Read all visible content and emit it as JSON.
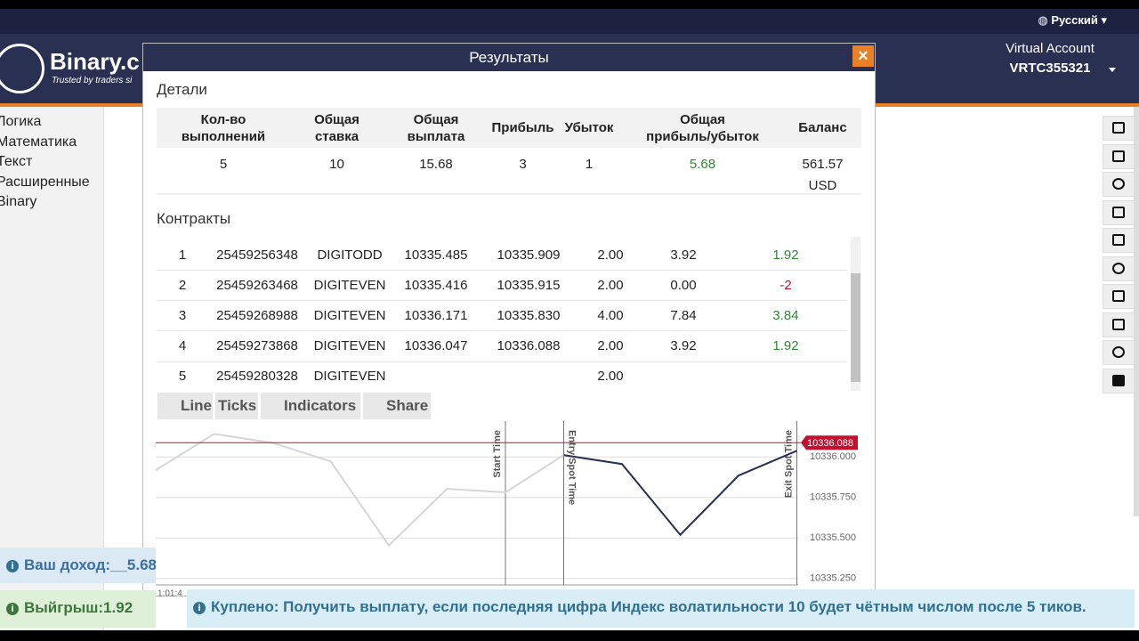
{
  "topbar": {
    "language": "Русский"
  },
  "header": {
    "logo": "Binary.c",
    "tagline": "Trusted by traders si",
    "account_label": "Virtual Account",
    "account_id": "VRTC355321"
  },
  "sidebar": {
    "items": [
      "Логика",
      "Математика",
      "Текст",
      "Расширенные",
      "Binary"
    ]
  },
  "modal": {
    "title": "Результаты",
    "details_heading": "Детали",
    "summary": {
      "headers": [
        "Кол-во\nвыполнений",
        "Общая\nставка",
        "Общая\nвыплата",
        "Прибыль",
        "Убыток",
        "Общая\nприбыль/убыток",
        "Баланс"
      ],
      "values": [
        "5",
        "10",
        "15.68",
        "3",
        "1",
        "5.68",
        "561.57\nUSD"
      ]
    },
    "contracts_heading": "Контракты",
    "contracts": [
      [
        "1",
        "25459256348",
        "DIGITODD",
        "10335.485",
        "10335.909",
        "2.00",
        "3.92",
        "1.92"
      ],
      [
        "2",
        "25459263468",
        "DIGITEVEN",
        "10335.416",
        "10335.915",
        "2.00",
        "0.00",
        "-2"
      ],
      [
        "3",
        "25459268988",
        "DIGITEVEN",
        "10336.171",
        "10335.830",
        "4.00",
        "7.84",
        "3.84"
      ],
      [
        "4",
        "25459273868",
        "DIGITEVEN",
        "10336.047",
        "10336.088",
        "2.00",
        "3.92",
        "1.92"
      ],
      [
        "5",
        "25459280328",
        "DIGITEVEN",
        null,
        null,
        "2.00",
        null,
        null
      ]
    ],
    "chart_toolbar": [
      "Line",
      "Ticks",
      "Indicators",
      "Share"
    ],
    "chart": {
      "type": "line",
      "x": [
        0,
        1,
        2,
        3,
        4,
        5,
        6,
        7,
        8,
        9,
        10,
        11
      ],
      "xlim": [
        0,
        11
      ],
      "ylim": [
        10335.21,
        10336.21
      ],
      "yticks": [
        {
          "value": 10336,
          "label": "10336.000"
        },
        {
          "value": 10335.75,
          "label": "10335.750"
        },
        {
          "value": 10335.5,
          "label": "10335.500"
        },
        {
          "value": 10335.25,
          "label": "10335.250"
        }
      ],
      "series": [
        {
          "color": "#d6d6d6",
          "values": [
            10335.918,
            10336.142,
            10336.087,
            10335.973,
            10335.454,
            10335.803,
            10335.781,
            10336.011,
            null,
            null,
            null,
            null
          ]
        },
        {
          "color": "#2a3052",
          "values": [
            null,
            null,
            null,
            null,
            null,
            null,
            null,
            10336.011,
            10335.956,
            10335.519,
            10335.885,
            10336.038
          ]
        }
      ],
      "current_price": 10336.088,
      "current_color": "#c4102f",
      "markers": [
        {
          "label": "Start Time",
          "x": 6
        },
        {
          "label": "Entry Spot Time",
          "x": 7
        },
        {
          "label": "Exit Spot Time",
          "x": 11
        }
      ],
      "x_label": "1:01:4"
    }
  },
  "notifications": {
    "income": "Ваш доход:__5.68",
    "win": "Выйгрыш:1.92",
    "purchase": "Куплено: Получить выплату, если последняя цифра Индекс волатильности 10 будет чётным числом после 5 тиков."
  }
}
